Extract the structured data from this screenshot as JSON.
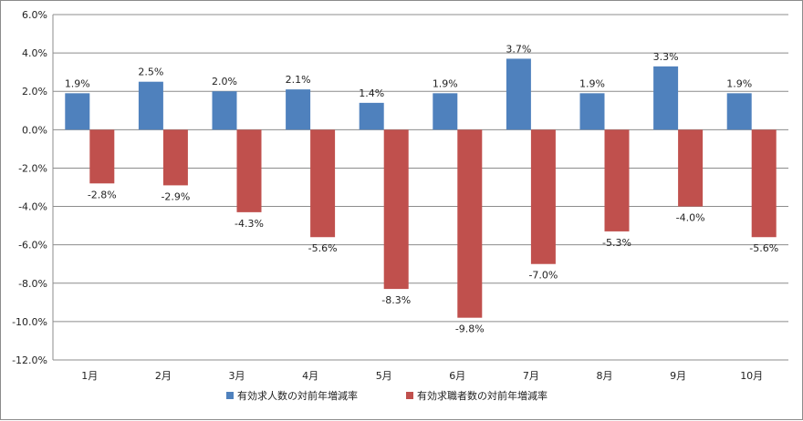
{
  "chart_data": {
    "type": "bar",
    "categories": [
      "1月",
      "2月",
      "3月",
      "4月",
      "5月",
      "6月",
      "7月",
      "8月",
      "9月",
      "10月"
    ],
    "series": [
      {
        "name": "有効求人数の対前年増減率",
        "color": "#4f81bd",
        "values": [
          1.9,
          2.5,
          2.0,
          2.1,
          1.4,
          1.9,
          3.7,
          1.9,
          3.3,
          1.9
        ],
        "labels": [
          "1.9%",
          "2.5%",
          "2.0%",
          "2.1%",
          "1.4%",
          "1.9%",
          "3.7%",
          "1.9%",
          "3.3%",
          "1.9%"
        ]
      },
      {
        "name": "有効求職者数の対前年増減率",
        "color": "#c0504d",
        "values": [
          -2.8,
          -2.9,
          -4.3,
          -5.6,
          -8.3,
          -9.8,
          -7.0,
          -5.3,
          -4.0,
          -5.6
        ],
        "labels": [
          "-2.8%",
          "-2.9%",
          "-4.3%",
          "-5.6%",
          "-8.3%",
          "-9.8%",
          "-7.0%",
          "-5.3%",
          "-4.0%",
          "-5.6%"
        ]
      }
    ],
    "y_ticks": [
      6.0,
      4.0,
      2.0,
      0.0,
      -2.0,
      -4.0,
      -6.0,
      -8.0,
      -10.0,
      -12.0
    ],
    "y_tick_labels": [
      "6.0%",
      "4.0%",
      "2.0%",
      "0.0%",
      "-2.0%",
      "-4.0%",
      "-6.0%",
      "-8.0%",
      "-10.0%",
      "-12.0%"
    ],
    "ylim": [
      -12,
      6
    ],
    "gridlines": true,
    "legend_position": "bottom",
    "title": "",
    "xlabel": "",
    "ylabel": ""
  }
}
